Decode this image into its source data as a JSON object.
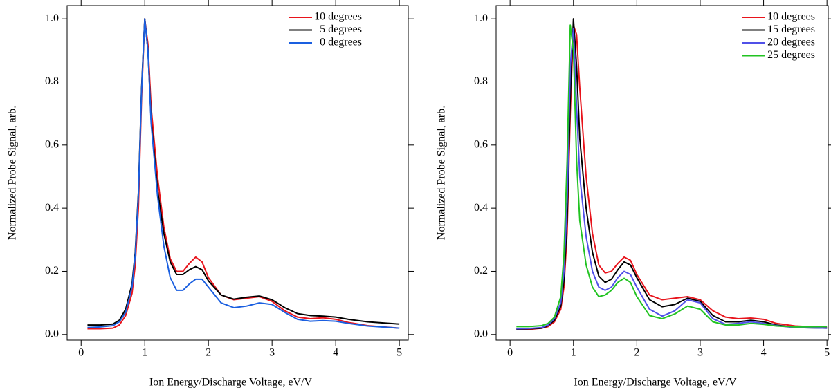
{
  "chart_data": [
    {
      "type": "line",
      "xlabel": "Ion Energy/Discharge Voltage, eV/V",
      "ylabel": "Normalized Probe Signal, arb.",
      "xlim": [
        -0.22,
        5.14
      ],
      "ylim": [
        -0.018,
        1.042
      ],
      "xticks": [
        0,
        1,
        2,
        3,
        4,
        5
      ],
      "yticks": [
        {
          "value": 0,
          "label": "0.0"
        },
        0.2,
        0.4,
        0.6,
        0.8,
        {
          "value": 1,
          "label": "1.0"
        }
      ],
      "legend": "upper right",
      "x": [
        0.1,
        0.3,
        0.5,
        0.6,
        0.7,
        0.8,
        0.85,
        0.9,
        0.95,
        1.0,
        1.05,
        1.1,
        1.2,
        1.3,
        1.4,
        1.5,
        1.6,
        1.7,
        1.8,
        1.9,
        2.0,
        2.2,
        2.4,
        2.6,
        2.8,
        3.0,
        3.2,
        3.4,
        3.6,
        3.8,
        4.0,
        4.2,
        4.5,
        5.0
      ],
      "series": [
        {
          "name": "10 degrees",
          "color": "#e8141c",
          "values": [
            0.018,
            0.018,
            0.02,
            0.03,
            0.06,
            0.13,
            0.22,
            0.4,
            0.75,
            1.0,
            0.92,
            0.72,
            0.5,
            0.34,
            0.24,
            0.2,
            0.2,
            0.225,
            0.245,
            0.23,
            0.18,
            0.125,
            0.11,
            0.115,
            0.12,
            0.105,
            0.075,
            0.055,
            0.05,
            0.053,
            0.048,
            0.038,
            0.028,
            0.02
          ]
        },
        {
          "name": "5 degrees",
          "color": "#000000",
          "values": [
            0.03,
            0.03,
            0.033,
            0.045,
            0.08,
            0.16,
            0.26,
            0.45,
            0.78,
            1.0,
            0.9,
            0.68,
            0.46,
            0.32,
            0.23,
            0.19,
            0.19,
            0.205,
            0.215,
            0.205,
            0.17,
            0.125,
            0.112,
            0.118,
            0.122,
            0.11,
            0.085,
            0.066,
            0.06,
            0.058,
            0.055,
            0.048,
            0.04,
            0.033
          ]
        },
        {
          "name": "0 degrees",
          "color": "#1a5fe0",
          "values": [
            0.022,
            0.024,
            0.028,
            0.04,
            0.07,
            0.15,
            0.25,
            0.44,
            0.77,
            1.0,
            0.9,
            0.67,
            0.44,
            0.28,
            0.18,
            0.14,
            0.14,
            0.16,
            0.175,
            0.175,
            0.15,
            0.1,
            0.085,
            0.09,
            0.1,
            0.095,
            0.07,
            0.048,
            0.042,
            0.044,
            0.042,
            0.035,
            0.027,
            0.02
          ]
        }
      ]
    },
    {
      "type": "line",
      "xlabel": "Ion Energy/Discharge Voltage, eV/V",
      "ylabel": "Normalized Probe Signal, arb.",
      "xlim": [
        -0.22,
        5.02
      ],
      "ylim": [
        -0.018,
        1.042
      ],
      "xticks": [
        0,
        1,
        2,
        3,
        4,
        5
      ],
      "yticks": [
        {
          "value": 0,
          "label": "0.0"
        },
        0.2,
        0.4,
        0.6,
        0.8,
        {
          "value": 1,
          "label": "1.0"
        }
      ],
      "legend": "upper right",
      "x": [
        0.1,
        0.3,
        0.5,
        0.6,
        0.7,
        0.8,
        0.85,
        0.9,
        0.95,
        1.0,
        1.05,
        1.1,
        1.2,
        1.3,
        1.4,
        1.5,
        1.6,
        1.7,
        1.8,
        1.9,
        2.0,
        2.2,
        2.4,
        2.6,
        2.8,
        3.0,
        3.2,
        3.4,
        3.6,
        3.8,
        4.0,
        4.2,
        4.5,
        5.0
      ],
      "series": [
        {
          "name": "10 degrees",
          "color": "#e8141c",
          "values": [
            0.015,
            0.016,
            0.02,
            0.025,
            0.04,
            0.08,
            0.15,
            0.32,
            0.7,
            0.98,
            0.95,
            0.78,
            0.5,
            0.32,
            0.22,
            0.195,
            0.2,
            0.225,
            0.245,
            0.235,
            0.19,
            0.125,
            0.11,
            0.115,
            0.12,
            0.11,
            0.075,
            0.055,
            0.05,
            0.052,
            0.048,
            0.035,
            0.027,
            0.022
          ]
        },
        {
          "name": "15 degrees",
          "color": "#000000",
          "values": [
            0.017,
            0.018,
            0.02,
            0.028,
            0.045,
            0.09,
            0.17,
            0.36,
            0.75,
            1.0,
            0.85,
            0.62,
            0.4,
            0.26,
            0.185,
            0.165,
            0.175,
            0.205,
            0.23,
            0.22,
            0.18,
            0.11,
            0.088,
            0.095,
            0.115,
            0.105,
            0.06,
            0.04,
            0.04,
            0.045,
            0.04,
            0.03,
            0.022,
            0.02
          ]
        },
        {
          "name": "20 degrees",
          "color": "#5050e8",
          "values": [
            0.018,
            0.019,
            0.022,
            0.03,
            0.05,
            0.1,
            0.2,
            0.42,
            0.85,
            0.97,
            0.72,
            0.5,
            0.31,
            0.2,
            0.15,
            0.14,
            0.15,
            0.18,
            0.2,
            0.19,
            0.15,
            0.08,
            0.058,
            0.075,
            0.11,
            0.1,
            0.05,
            0.032,
            0.035,
            0.04,
            0.035,
            0.028,
            0.022,
            0.02
          ]
        },
        {
          "name": "25 degrees",
          "color": "#22c322",
          "values": [
            0.025,
            0.025,
            0.028,
            0.035,
            0.055,
            0.12,
            0.25,
            0.55,
            0.98,
            0.9,
            0.55,
            0.36,
            0.22,
            0.15,
            0.12,
            0.125,
            0.14,
            0.165,
            0.178,
            0.165,
            0.12,
            0.06,
            0.05,
            0.065,
            0.09,
            0.08,
            0.04,
            0.03,
            0.03,
            0.035,
            0.032,
            0.027,
            0.024,
            0.025
          ]
        }
      ]
    }
  ]
}
